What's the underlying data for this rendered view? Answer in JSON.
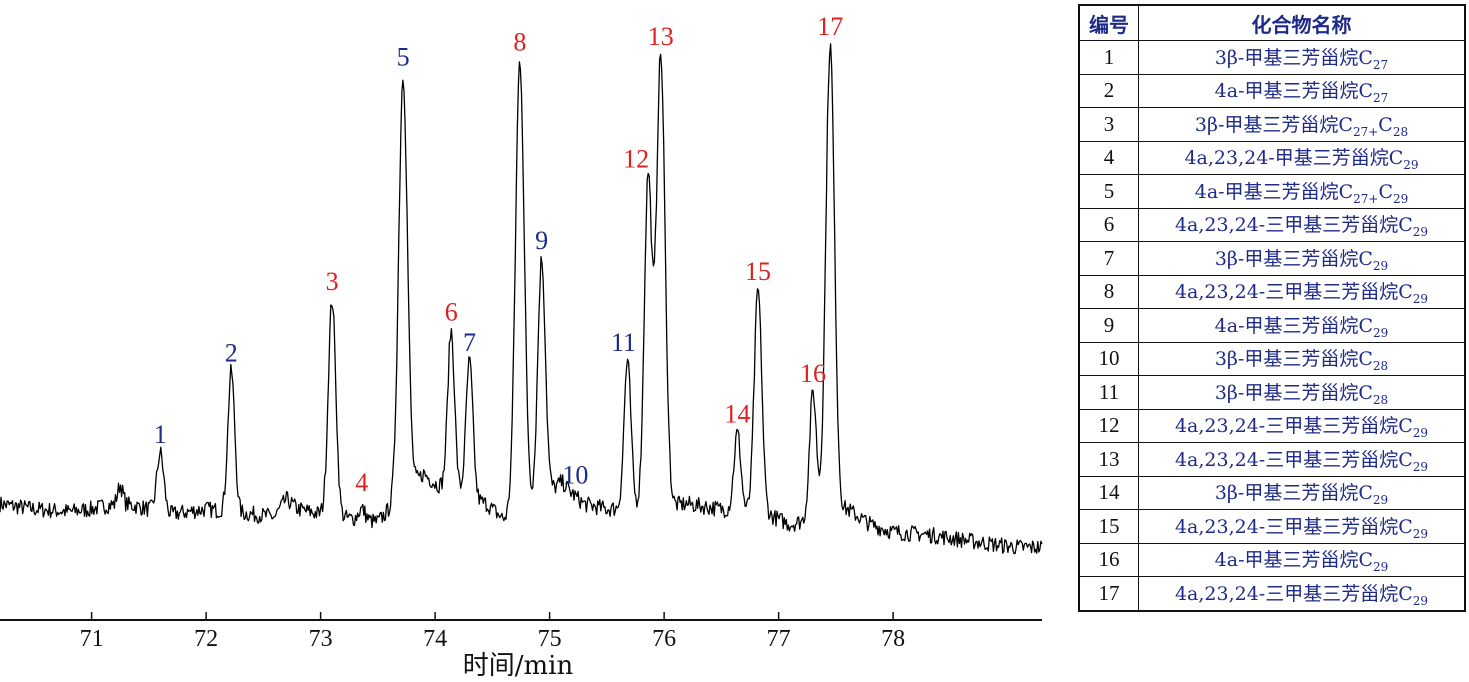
{
  "chart_data": {
    "type": "line",
    "xlabel": "时间/min",
    "ylabel": "",
    "xlim": [
      70.2,
      79.3
    ],
    "ylim": [
      0,
      100
    ],
    "grid": false,
    "x_ticks": [
      71,
      72,
      73,
      74,
      75,
      76,
      77,
      78
    ],
    "baseline": [
      [
        70.2,
        10
      ],
      [
        70.5,
        9
      ],
      [
        70.8,
        8.5
      ],
      [
        71.0,
        9
      ],
      [
        71.2,
        10
      ],
      [
        71.25,
        14
      ],
      [
        71.3,
        10
      ],
      [
        71.5,
        9
      ],
      [
        71.7,
        8
      ],
      [
        72.0,
        9
      ],
      [
        72.4,
        8
      ],
      [
        72.6,
        7.5
      ],
      [
        72.7,
        11
      ],
      [
        72.8,
        9
      ],
      [
        73.0,
        8
      ],
      [
        73.3,
        7
      ],
      [
        73.5,
        6.5
      ],
      [
        73.9,
        16
      ],
      [
        74.0,
        14
      ],
      [
        74.45,
        10
      ],
      [
        74.6,
        7
      ],
      [
        75.1,
        14
      ],
      [
        75.3,
        10
      ],
      [
        75.5,
        9
      ],
      [
        76.2,
        10
      ],
      [
        76.5,
        9
      ],
      [
        76.9,
        8
      ],
      [
        77.1,
        6
      ],
      [
        77.6,
        9
      ],
      [
        77.8,
        6
      ],
      [
        78.0,
        4.5
      ],
      [
        78.3,
        4
      ],
      [
        78.6,
        3
      ],
      [
        78.9,
        2
      ],
      [
        79.1,
        1.5
      ],
      [
        79.3,
        1.5
      ]
    ],
    "series": [
      {
        "peaks": [
          {
            "label": "1",
            "rt": 71.6,
            "height": 20,
            "color": "blue"
          },
          {
            "label": "2",
            "rt": 72.22,
            "height": 36,
            "color": "blue"
          },
          {
            "label": "3",
            "rt": 73.1,
            "height": 50,
            "color": "red"
          },
          {
            "label": "4",
            "rt": 73.36,
            "height": 9,
            "color": "red"
          },
          {
            "label": "5",
            "rt": 73.72,
            "height": 94,
            "color": "blue"
          },
          {
            "label": "6",
            "rt": 74.14,
            "height": 44,
            "color": "red"
          },
          {
            "label": "7",
            "rt": 74.3,
            "height": 38,
            "color": "blue"
          },
          {
            "label": "8",
            "rt": 74.74,
            "height": 97,
            "color": "red"
          },
          {
            "label": "9",
            "rt": 74.93,
            "height": 58,
            "color": "blue"
          },
          {
            "label": "10",
            "rt": 75.12,
            "height": 14,
            "color": "blue"
          },
          {
            "label": "11",
            "rt": 75.68,
            "height": 38,
            "color": "blue"
          },
          {
            "label": "12",
            "rt": 75.86,
            "height": 74,
            "color": "red"
          },
          {
            "label": "13",
            "rt": 75.97,
            "height": 98,
            "color": "red"
          },
          {
            "label": "14",
            "rt": 76.64,
            "height": 24,
            "color": "red"
          },
          {
            "label": "15",
            "rt": 76.82,
            "height": 52,
            "color": "red"
          },
          {
            "label": "16",
            "rt": 77.3,
            "height": 32,
            "color": "red"
          },
          {
            "label": "17",
            "rt": 77.45,
            "height": 100,
            "color": "red"
          }
        ]
      }
    ]
  },
  "colors": {
    "blue": "#1e2a8a",
    "red": "#e02020",
    "line": "#000000"
  },
  "legend": {
    "header_num": "编号",
    "header_name": "化合物名称",
    "rows": [
      {
        "num": "1",
        "name": "3β-甲基三芳甾烷C",
        "sub": "27"
      },
      {
        "num": "2",
        "name": "4a-甲基三芳甾烷C",
        "sub": "27"
      },
      {
        "num": "3",
        "name": "3β-甲基三芳甾烷C",
        "sub": "27+",
        "name2": "C",
        "sub2": "28"
      },
      {
        "num": "4",
        "name": "4a,23,24-甲基三芳甾烷C",
        "sub": "29"
      },
      {
        "num": "5",
        "name": "4a-甲基三芳甾烷C",
        "sub": "27+",
        "name2": "C",
        "sub2": "29"
      },
      {
        "num": "6",
        "name": "4a,23,24-三甲基三芳甾烷C",
        "sub": "29"
      },
      {
        "num": "7",
        "name": "3β-甲基三芳甾烷C",
        "sub": "29"
      },
      {
        "num": "8",
        "name": "4a,23,24-三甲基三芳甾烷C",
        "sub": "29"
      },
      {
        "num": "9",
        "name": "4a-甲基三芳甾烷C",
        "sub": "29"
      },
      {
        "num": "10",
        "name": "3β-甲基三芳甾烷C",
        "sub": "28"
      },
      {
        "num": "11",
        "name": "3β-甲基三芳甾烷C",
        "sub": "28"
      },
      {
        "num": "12",
        "name": "4a,23,24-三甲基三芳甾烷C",
        "sub": "29"
      },
      {
        "num": "13",
        "name": "4a,23,24-三甲基三芳甾烷C",
        "sub": "29"
      },
      {
        "num": "14",
        "name": "3β-甲基三芳甾烷C",
        "sub": "29"
      },
      {
        "num": "15",
        "name": "4a,23,24-三甲基三芳甾烷C",
        "sub": "29"
      },
      {
        "num": "16",
        "name": "4a-甲基三芳甾烷C",
        "sub": "29"
      },
      {
        "num": "17",
        "name": "4a,23,24-三甲基三芳甾烷C",
        "sub": "29"
      }
    ]
  }
}
